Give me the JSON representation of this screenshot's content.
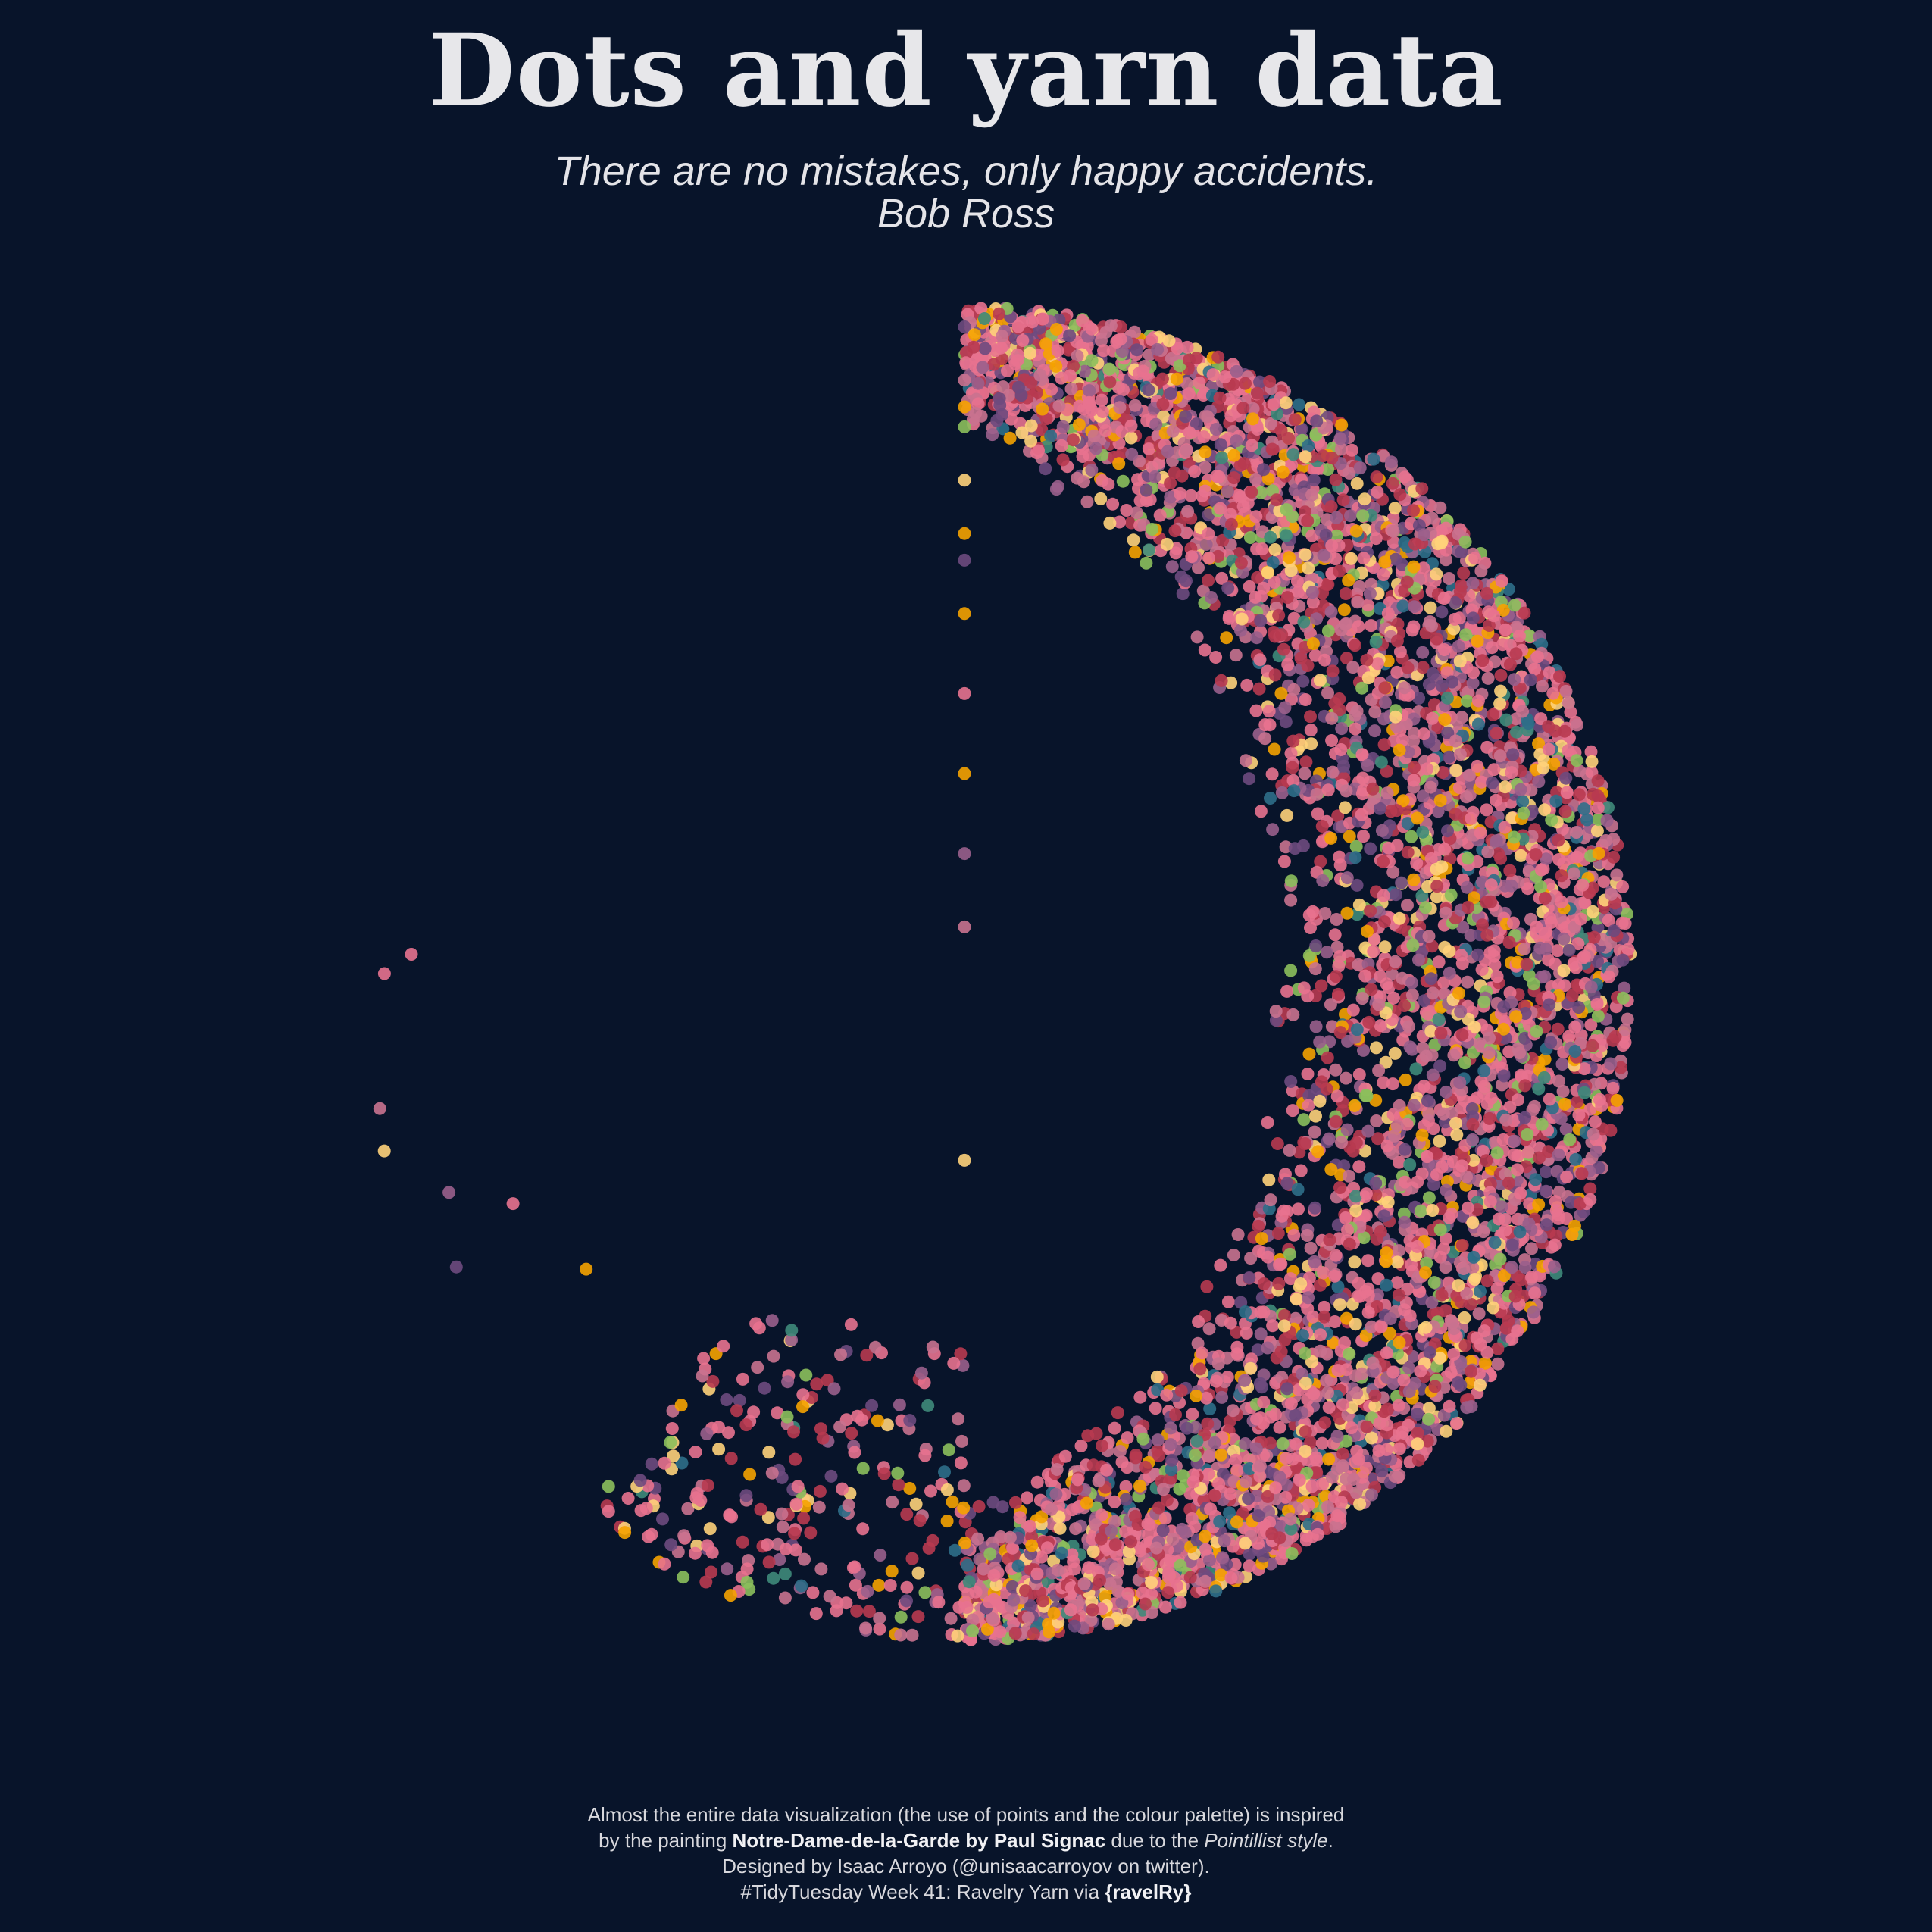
{
  "title": "Dots and yarn data",
  "subtitle": {
    "quote": "There are no mistakes, only happy accidents.",
    "author": "Bob Ross"
  },
  "caption": {
    "line1": "Almost the entire data visualization (the use of points and the colour palette) is inspired",
    "line2_pre": "by the painting ",
    "line2_painting": "Notre-Dame-de-la-Garde",
    "line2_mid": " by Paul Signac",
    "line2_post": " due to the ",
    "line2_style": "Pointillist style",
    "line2_end": ".",
    "line3": "Designed by Isaac Arroyo (@unisaacarroyov on twitter).",
    "line4_pre": "#TidyTuesday Week 41: Ravelry Yarn via ",
    "line4_source": "{ravelRy}"
  },
  "chart_data": {
    "type": "scatter",
    "coordinate_system": "polar",
    "title": "Dots and yarn data",
    "xlabel": "",
    "ylabel": "",
    "grid": false,
    "legend": "none",
    "palette": [
      "#e8728f",
      "#b83a50",
      "#c9728f",
      "#6e4a7e",
      "#9a5f8c",
      "#f5a200",
      "#ffd27a",
      "#8cbf5c",
      "#2f6e88",
      "#3f8a7a"
    ],
    "note_values_are_approximate": true,
    "clusters": [
      {
        "label": "",
        "angle_range_deg": [
          0,
          180
        ],
        "radius_range": [
          0.45,
          1.0
        ],
        "count": 5600
      },
      {
        "label": "",
        "angle_range_deg": [
          180,
          215
        ],
        "radius_range": [
          0.55,
          1.0
        ],
        "count": 260
      }
    ],
    "outliers": [
      {
        "angle_deg": 0,
        "radius": 0.97
      },
      {
        "angle_deg": 0,
        "radius": 0.89
      },
      {
        "angle_deg": 0,
        "radius": 0.85
      },
      {
        "angle_deg": 0,
        "radius": 0.82
      },
      {
        "angle_deg": 0,
        "radius": 0.74
      },
      {
        "angle_deg": 0,
        "radius": 0.66
      },
      {
        "angle_deg": 0,
        "radius": 0.62
      },
      {
        "angle_deg": 0,
        "radius": 0.54
      },
      {
        "angle_deg": 0,
        "radius": 0.42
      },
      {
        "angle_deg": 0,
        "radius": 0.3
      },
      {
        "angle_deg": 0,
        "radius": 0.18
      },
      {
        "angle_deg": 0,
        "radius": 0.07
      },
      {
        "angle_deg": 180,
        "radius": 0.28
      },
      {
        "angle_deg": 270,
        "radius": 0.87
      },
      {
        "angle_deg": 272,
        "radius": 0.83
      },
      {
        "angle_deg": 257,
        "radius": 0.9
      },
      {
        "angle_deg": 253,
        "radius": 0.91
      },
      {
        "angle_deg": 247,
        "radius": 0.84
      },
      {
        "angle_deg": 240,
        "radius": 0.88
      },
      {
        "angle_deg": 243,
        "radius": 0.76
      },
      {
        "angle_deg": 232,
        "radius": 0.72
      }
    ]
  }
}
